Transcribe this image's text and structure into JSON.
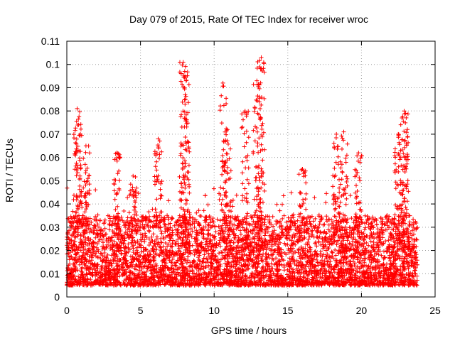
{
  "chart_data": {
    "type": "scatter",
    "title": "Day 079 of 2015, Rate Of TEC Index for receiver wroc",
    "xlabel": "GPS time / hours",
    "ylabel": "ROTI / TECUs",
    "xlim": [
      0,
      25
    ],
    "ylim": [
      0,
      0.11
    ],
    "x_ticks": [
      0,
      5,
      10,
      15,
      20,
      25
    ],
    "x_tick_labels": [
      "0",
      "5",
      "10",
      "15",
      "20",
      "25"
    ],
    "y_ticks": [
      0,
      0.01,
      0.02,
      0.03,
      0.04,
      0.05,
      0.06,
      0.07,
      0.08,
      0.09,
      0.1,
      0.11
    ],
    "y_tick_labels": [
      "0",
      "0.01",
      "0.02",
      "0.03",
      "0.04",
      "0.05",
      "0.06",
      "0.07",
      "0.08",
      "0.09",
      "0.1",
      "0.11"
    ],
    "grid": true,
    "marker": "+",
    "series": [
      {
        "name": "ROTI",
        "color": "#ff0000",
        "x_range": [
          0,
          23.8
        ],
        "typical_range": [
          0.005,
          0.035
        ],
        "peaks": [
          {
            "x": 0.7,
            "y": 0.081
          },
          {
            "x": 0.8,
            "y": 0.074
          },
          {
            "x": 1.3,
            "y": 0.065
          },
          {
            "x": 3.4,
            "y": 0.062
          },
          {
            "x": 4.5,
            "y": 0.052
          },
          {
            "x": 6.2,
            "y": 0.068
          },
          {
            "x": 7.9,
            "y": 0.101
          },
          {
            "x": 8.0,
            "y": 0.097
          },
          {
            "x": 8.1,
            "y": 0.093
          },
          {
            "x": 10.6,
            "y": 0.092
          },
          {
            "x": 10.9,
            "y": 0.072
          },
          {
            "x": 12.1,
            "y": 0.08
          },
          {
            "x": 12.9,
            "y": 0.093
          },
          {
            "x": 13.2,
            "y": 0.103
          },
          {
            "x": 13.1,
            "y": 0.099
          },
          {
            "x": 16.0,
            "y": 0.055
          },
          {
            "x": 18.3,
            "y": 0.07
          },
          {
            "x": 18.8,
            "y": 0.071
          },
          {
            "x": 19.8,
            "y": 0.062
          },
          {
            "x": 22.5,
            "y": 0.07
          },
          {
            "x": 22.9,
            "y": 0.08
          },
          {
            "x": 23.0,
            "y": 0.079
          }
        ]
      }
    ]
  }
}
